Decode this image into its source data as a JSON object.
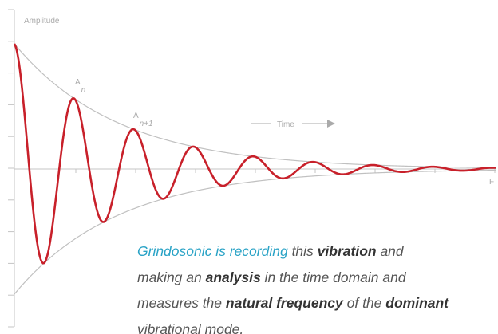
{
  "labels": {
    "y_axis": "Amplitude",
    "x_axis": "Time",
    "end": "F",
    "peak_n": {
      "symbol": "A",
      "subscript": "n"
    },
    "peak_n1": {
      "symbol": "A",
      "subscript": "n+1"
    }
  },
  "caption": {
    "lines": [
      [
        {
          "text": "Grindosonic is recording",
          "style": "accent"
        },
        {
          "text": " this ",
          "style": "plain"
        },
        {
          "text": "vibration",
          "style": "bold"
        },
        {
          "text": " and",
          "style": "plain"
        }
      ],
      [
        {
          "text": "making an ",
          "style": "plain"
        },
        {
          "text": "analysis",
          "style": "bold"
        },
        {
          "text": " in the time domain and",
          "style": "plain"
        }
      ],
      [
        {
          "text": "measures the ",
          "style": "plain"
        },
        {
          "text": "natural frequency",
          "style": "bold"
        },
        {
          "text": " of the ",
          "style": "plain"
        },
        {
          "text": "dominant",
          "style": "bold"
        }
      ],
      [
        {
          "text": "vibrational mode.",
          "style": "plain"
        }
      ]
    ]
  }
}
